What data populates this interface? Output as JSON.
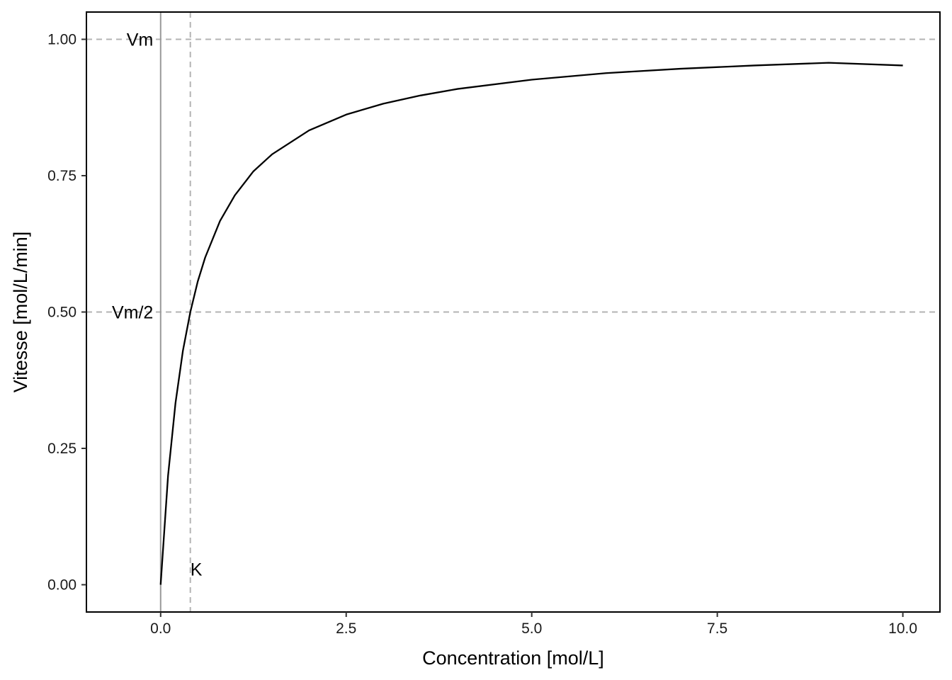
{
  "chart_data": {
    "type": "line",
    "title": "",
    "xlabel": "Concentration [mol/L]",
    "ylabel": "Vitesse [mol/L/min]",
    "xlim": [
      -1.0,
      10.5
    ],
    "ylim": [
      -0.05,
      1.05
    ],
    "x_ticks": [
      0.0,
      2.5,
      5.0,
      7.5,
      10.0
    ],
    "x_tick_labels": [
      "0.0",
      "2.5",
      "5.0",
      "7.5",
      "10.0"
    ],
    "y_ticks": [
      0.0,
      0.25,
      0.5,
      0.75,
      1.0
    ],
    "y_tick_labels": [
      "0.00",
      "0.25",
      "0.50",
      "0.75",
      "1.00"
    ],
    "grid": false,
    "legend": "none",
    "series": [
      {
        "color": "#000000",
        "x": [
          0,
          0.1,
          0.2,
          0.3,
          0.4,
          0.5,
          0.6,
          0.8,
          1.0,
          1.25,
          1.5,
          2.0,
          2.5,
          3.0,
          3.5,
          4.0,
          5.0,
          6.0,
          7.0,
          8.0,
          9.0,
          10.0
        ],
        "y": [
          0,
          0.2,
          0.333,
          0.429,
          0.5,
          0.556,
          0.6,
          0.667,
          0.714,
          0.758,
          0.789,
          0.833,
          0.862,
          0.882,
          0.897,
          0.909,
          0.926,
          0.938,
          0.946,
          0.952,
          0.957,
          0.952
        ]
      }
    ],
    "reference_lines": [
      {
        "orientation": "horizontal",
        "value": 1.0,
        "label": "Vm",
        "style": "dashed",
        "color": "#b3b3b3"
      },
      {
        "orientation": "horizontal",
        "value": 0.5,
        "label": "Vm/2",
        "style": "dashed",
        "color": "#b3b3b3"
      },
      {
        "orientation": "vertical",
        "value": 0.4,
        "label": "K",
        "style": "dashed",
        "color": "#b3b3b3"
      },
      {
        "orientation": "vertical",
        "value": 0.0,
        "label": "",
        "style": "solid",
        "color": "#999999"
      }
    ]
  }
}
